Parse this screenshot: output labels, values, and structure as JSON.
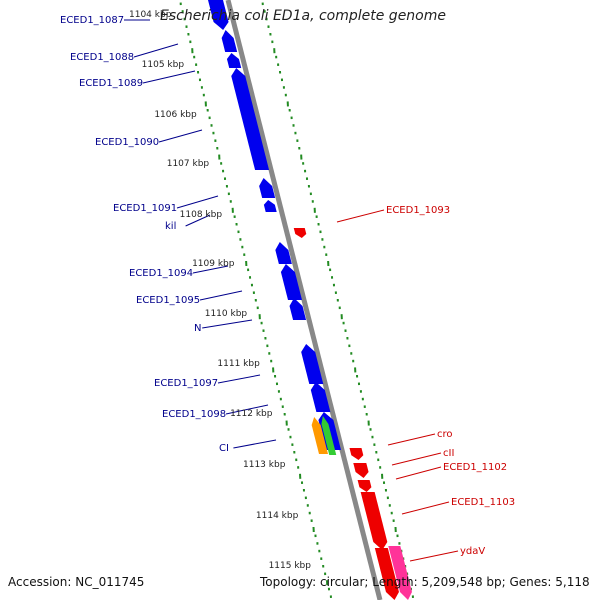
{
  "header": {
    "title": "Escherichia coli ED1a, complete genome"
  },
  "footer": {
    "accession": "Accession: NC_011745",
    "summary": "Topology: circular; Length: 5,209,548 bp; Genes: 5,118"
  },
  "colors": {
    "forward_gene": "#0000ee",
    "reverse_gene": "#ee0000",
    "forward_label": "#00008b",
    "reverse_label": "#cc0000",
    "orange_gene": "#ff9900",
    "green_gene": "#33cc33",
    "pink_gene": "#ff3399",
    "tick": "#228b22",
    "backbone": "#888888"
  },
  "ruler_labels": [
    "1104 kbp",
    "1105 kbp",
    "1106 kbp",
    "1107 kbp",
    "1108 kbp",
    "1109 kbp",
    "1110 kbp",
    "1111 kbp",
    "1112 kbp",
    "1113 kbp",
    "1114 kbp",
    "1115 kbp"
  ],
  "forward_labels": [
    "ECED1_1087",
    "ECED1_1088",
    "ECED1_1089",
    "ECED1_1090",
    "ECED1_1091",
    "kil",
    "ECED1_1094",
    "ECED1_1095",
    "N",
    "ECED1_1097",
    "ECED1_1098",
    "CI"
  ],
  "reverse_labels": [
    "ECED1_1093",
    "cro",
    "cII",
    "ECED1_1102",
    "ECED1_1103",
    "ydaV"
  ]
}
